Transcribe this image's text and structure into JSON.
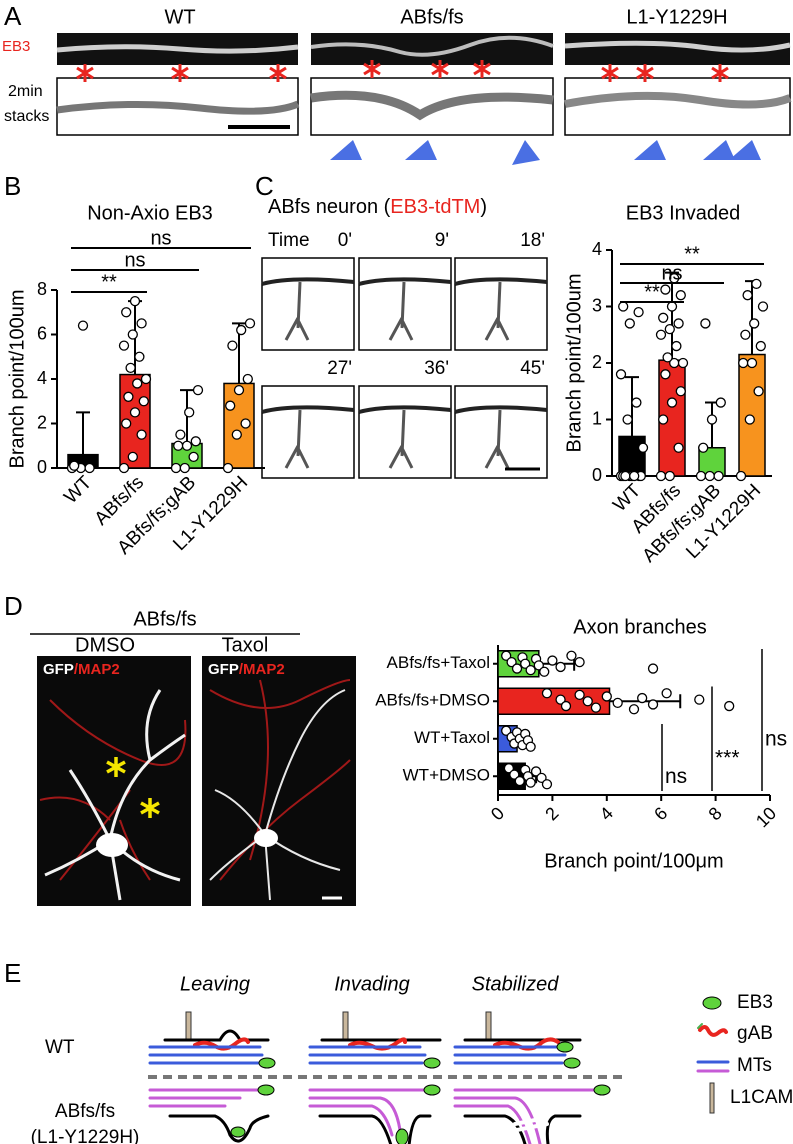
{
  "panel_labels": [
    "A",
    "B",
    "C",
    "D",
    "E"
  ],
  "panel_a": {
    "conditions": [
      "WT",
      "ABfs/fs",
      "L1-Y1229H"
    ],
    "eb3_label": "EB3",
    "stacks_label": [
      "2min",
      "stacks"
    ]
  },
  "panel_c": {
    "title_prefix": "ABfs neuron (",
    "title_marker": "EB3-tdTM",
    "title_suffix": ")",
    "time_label": "Time",
    "times": [
      "0'",
      "9'",
      "18'",
      "27'",
      "36'",
      "45'"
    ]
  },
  "panel_d": {
    "genotype": "ABfs/fs",
    "conditions": [
      "DMSO",
      "Taxol"
    ],
    "stain_gfp": "GFP",
    "stain_map2": "/MAP2"
  },
  "panel_e": {
    "stages": [
      "Leaving",
      "Invading",
      "Stabilized"
    ],
    "genotype_wt": "WT",
    "genotype_mut": [
      "ABfs/fs",
      "(L1-Y1229H)"
    ],
    "legend": [
      "EB3",
      "gAB",
      "MTs",
      "L1CAM"
    ]
  },
  "chart_data": [
    {
      "type": "bar",
      "title": "Non-Axio EB3",
      "y_label": "Branch point/100um",
      "categories": [
        "WT",
        "ABfs/fs",
        "ABfs/fs;gAB",
        "L1-Y1229H"
      ],
      "values": [
        0.6,
        4.2,
        1.1,
        3.8
      ],
      "errors": [
        1.9,
        3.3,
        2.4,
        2.7
      ],
      "colors": [
        "#000000",
        "#e8251f",
        "#5fd33c",
        "#f7931e"
      ],
      "points": [
        [
          0,
          0,
          0,
          0.1,
          6.4
        ],
        [
          0,
          0.5,
          1.5,
          2,
          2.5,
          3,
          3.2,
          3.8,
          4,
          4.5,
          5,
          5.5,
          6,
          6.5,
          7,
          7.5
        ],
        [
          0,
          0,
          0.5,
          1,
          1,
          1.2,
          1.5,
          2.5,
          3.5
        ],
        [
          0,
          1.5,
          2,
          2.8,
          3.5,
          4,
          5.5,
          6.2,
          6.5
        ]
      ],
      "ylim": [
        0,
        8
      ],
      "yticks": [
        0,
        2,
        4,
        6,
        8
      ],
      "comparisons": [
        {
          "label": "**",
          "pair": [
            "WT",
            "ABfs/fs"
          ]
        },
        {
          "label": "ns",
          "pair": [
            "WT",
            "ABfs/fs;gAB"
          ]
        },
        {
          "label": "ns",
          "pair": [
            "WT",
            "L1-Y1229H"
          ]
        }
      ]
    },
    {
      "type": "bar",
      "title": "EB3 Invaded",
      "y_label": "Branch point/100um",
      "categories": [
        "WT",
        "ABfs/fs",
        "ABfs/fs;gAB",
        "L1-Y1229H"
      ],
      "values": [
        0.7,
        2.05,
        0.5,
        2.15
      ],
      "errors": [
        1.05,
        1.55,
        0.8,
        1.3
      ],
      "colors": [
        "#000000",
        "#e8251f",
        "#5fd33c",
        "#f7931e"
      ],
      "points": [
        [
          0,
          0,
          0,
          0,
          0,
          0,
          0,
          0,
          0.5,
          1,
          1.3,
          1.8,
          2.7,
          2.9,
          3
        ],
        [
          0,
          0,
          0.5,
          1,
          1.3,
          1.5,
          1.8,
          2,
          2,
          2.1,
          2.3,
          2.5,
          2.6,
          2.7,
          2.8,
          3,
          3.2,
          3.3,
          3.5
        ],
        [
          0,
          0,
          0,
          0.5,
          1,
          1.3,
          2.7
        ],
        [
          0,
          1,
          1.5,
          2,
          2,
          2.3,
          2.5,
          2.7,
          3,
          3.2,
          3.4
        ]
      ],
      "ylim": [
        0,
        4
      ],
      "yticks": [
        0,
        1,
        2,
        3,
        4
      ],
      "comparisons": [
        {
          "label": "**",
          "pair": [
            "WT",
            "ABfs/fs"
          ]
        },
        {
          "label": "ns",
          "pair": [
            "WT",
            "ABfs/fs;gAB"
          ]
        },
        {
          "label": "**",
          "pair": [
            "WT",
            "L1-Y1229H"
          ]
        }
      ]
    },
    {
      "type": "barh",
      "title": "Axon branches",
      "x_label": "Branch point/100μm",
      "categories": [
        "ABfs/fs+Taxol",
        "ABfs/fs+DMSO",
        "WT+Taxol",
        "WT+DMSO"
      ],
      "values": [
        1.5,
        4.1,
        0.7,
        1.0
      ],
      "errors": [
        1.3,
        2.6,
        0.3,
        0.4
      ],
      "colors": [
        "#5fd33c",
        "#e8251f",
        "#3b5bdb",
        "#000000"
      ],
      "points": [
        [
          0.3,
          0.5,
          0.7,
          0.9,
          1,
          1.2,
          1.4,
          1.5,
          1.7,
          2,
          2.3,
          2.7,
          3,
          5.7
        ],
        [
          1.8,
          2.3,
          2.5,
          3,
          3.3,
          3.6,
          4,
          4.4,
          5,
          5.3,
          5.7,
          6.2,
          7.4,
          8.5
        ],
        [
          0.3,
          0.5,
          0.6,
          0.7,
          0.8,
          0.9,
          1,
          1.1,
          1.2
        ],
        [
          0.4,
          0.6,
          0.8,
          1,
          1.1,
          1.2,
          1.4,
          1.6,
          1.8
        ]
      ],
      "xlim": [
        0,
        10
      ],
      "xticks": [
        0,
        2,
        4,
        6,
        8,
        10
      ],
      "comparisons": [
        {
          "label": "ns",
          "pair": [
            "WT+Taxol",
            "WT+DMSO"
          ]
        },
        {
          "label": "***",
          "pair": [
            "ABfs/fs+DMSO",
            "WT+DMSO"
          ]
        },
        {
          "label": "ns",
          "pair": [
            "ABfs/fs+Taxol",
            "WT+DMSO"
          ]
        }
      ]
    }
  ]
}
